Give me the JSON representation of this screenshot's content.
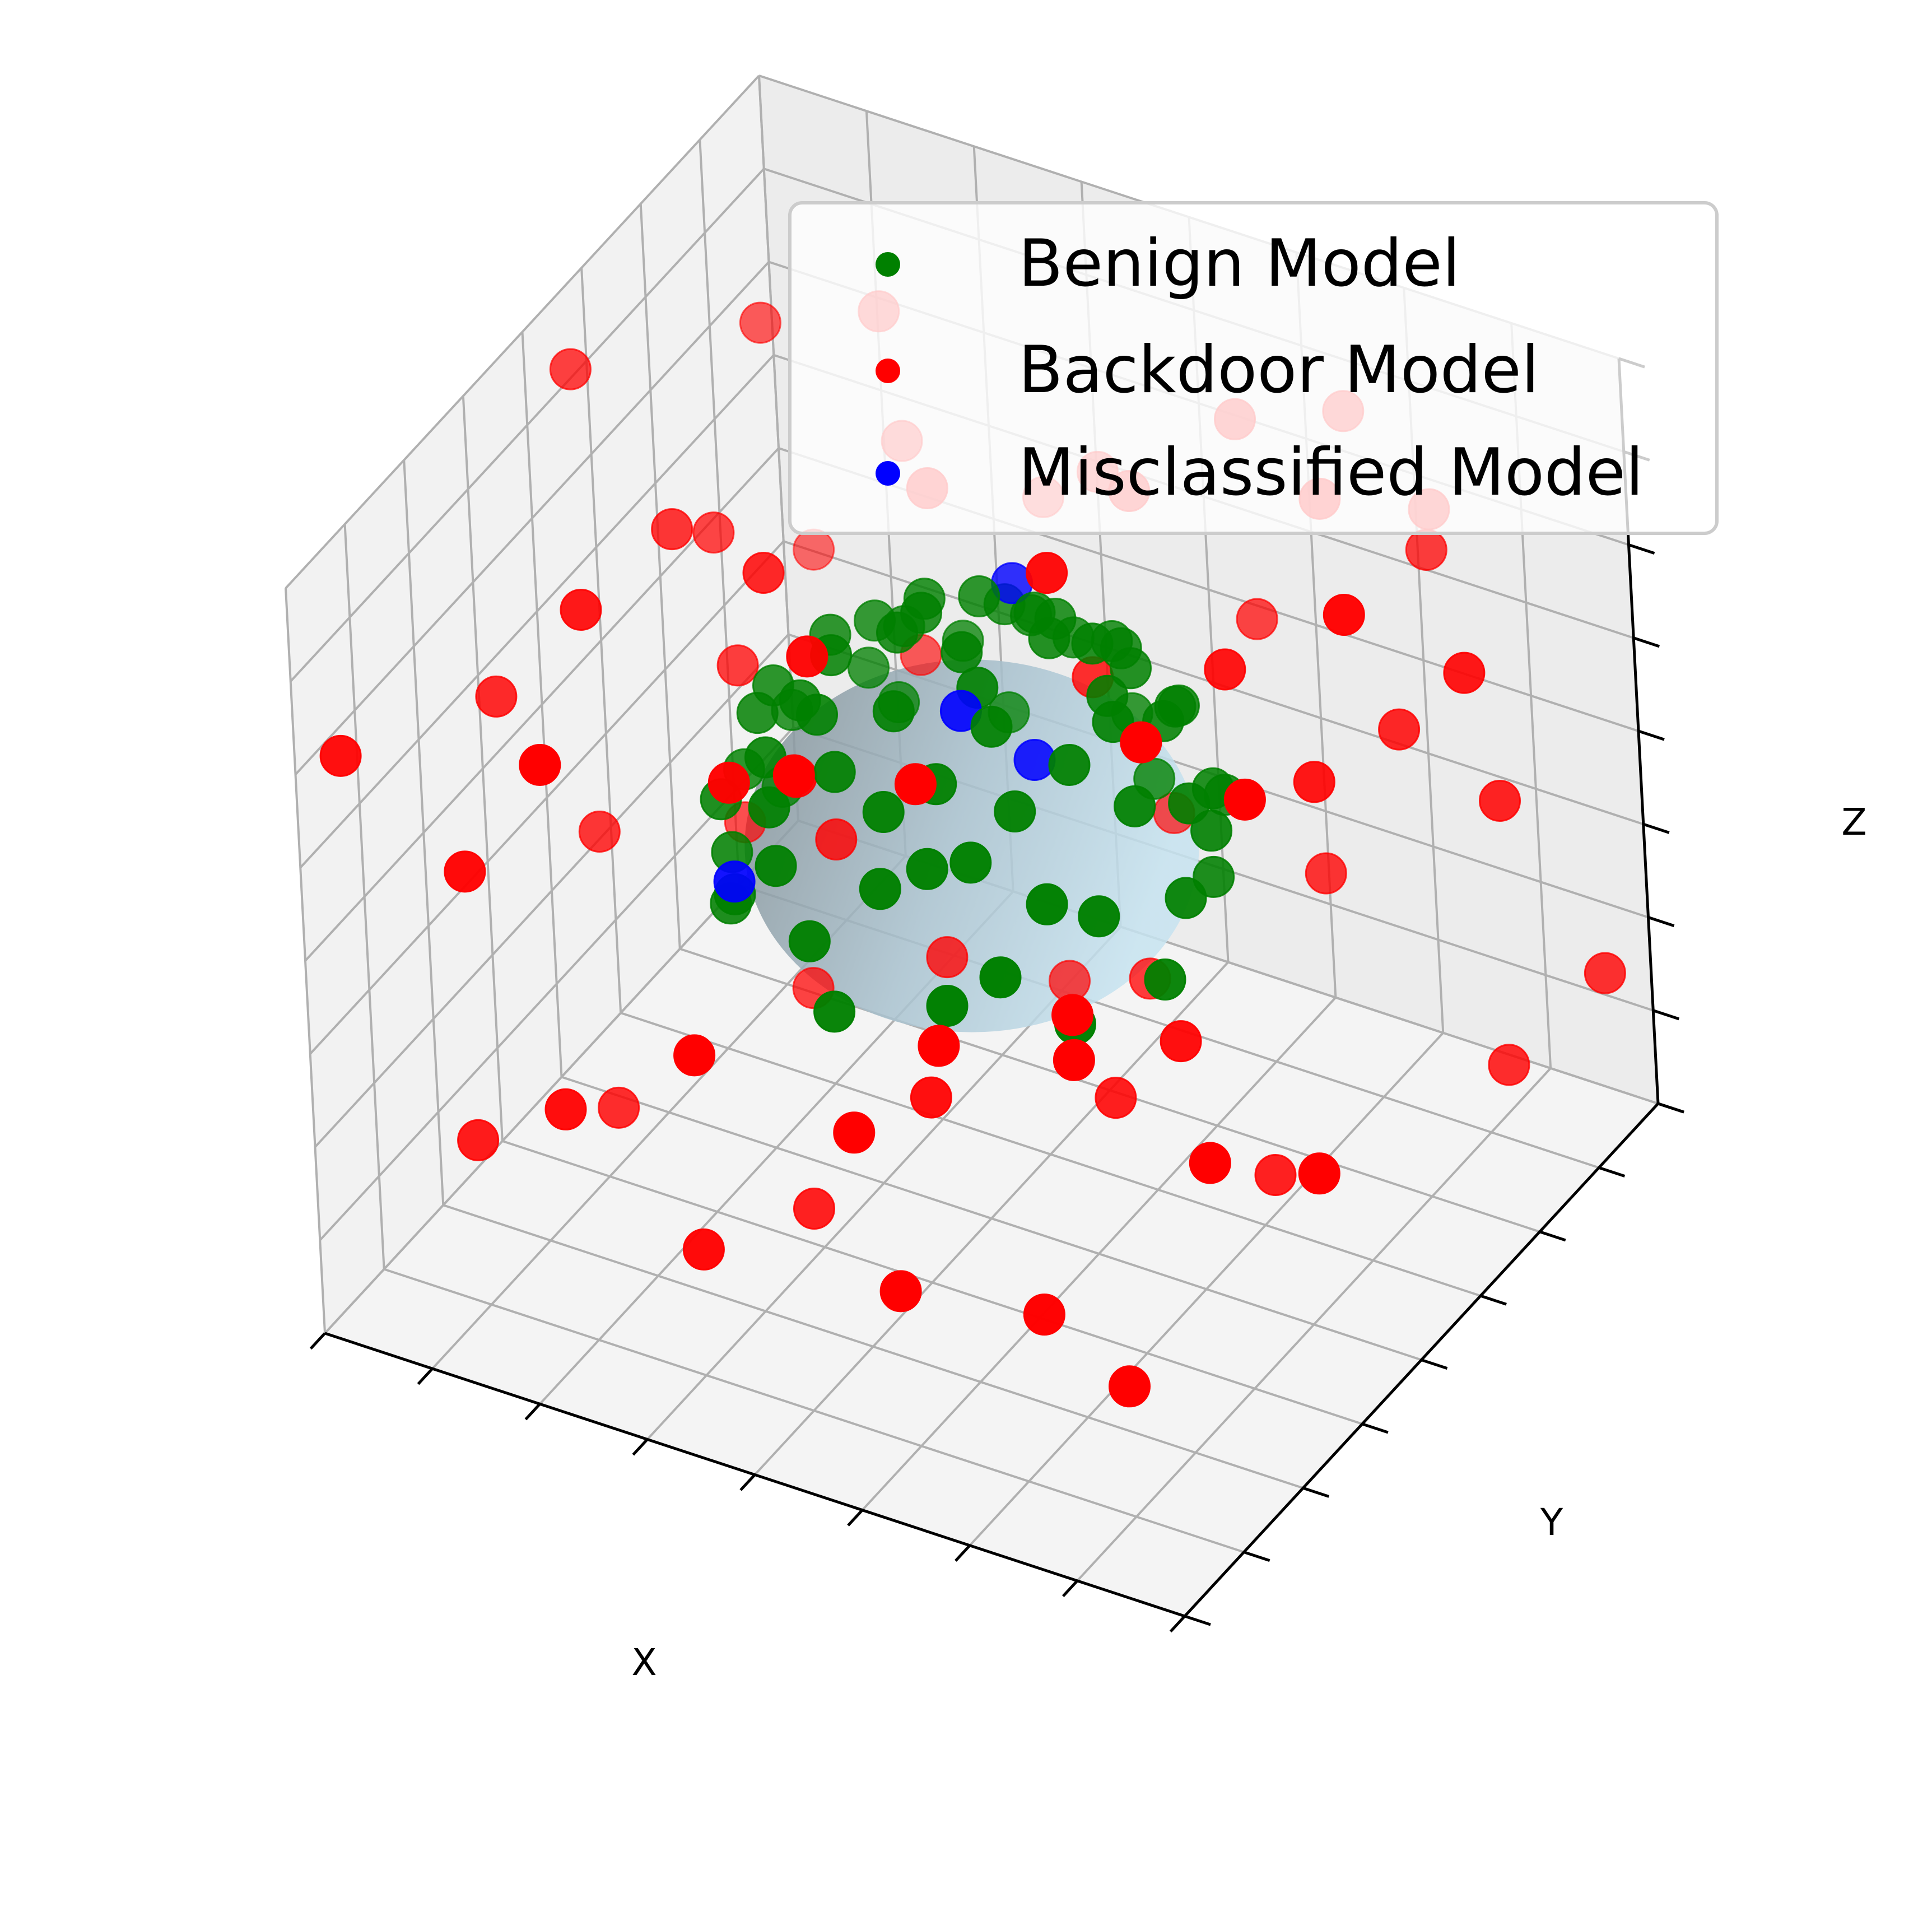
{
  "chart_data": {
    "type": "scatter",
    "projection": "3d",
    "title": "",
    "xlabel": "X",
    "ylabel": "Y",
    "zlabel": "Z",
    "tick_labels_shown": false,
    "grid": true,
    "legend": {
      "placement": "upper-right",
      "entries": [
        "Benign Model",
        "Backdoor Model",
        "Misclassified Model"
      ]
    },
    "xlim": [
      -1,
      1
    ],
    "ylim": [
      -1,
      1
    ],
    "zlim": [
      -1,
      1
    ],
    "surface": {
      "shape": "sphere",
      "center": [
        0,
        0,
        0
      ],
      "radius": 0.52,
      "color": "#a9cfe0"
    },
    "series": [
      {
        "name": "Benign Model",
        "color": "#008000",
        "points": [
          [
            0.12,
            0.15,
            0.5
          ],
          [
            -0.18,
            0.05,
            0.47
          ],
          [
            0.3,
            -0.1,
            0.4
          ],
          [
            -0.3,
            -0.15,
            0.38
          ],
          [
            0.1,
            -0.3,
            0.41
          ],
          [
            -0.1,
            0.35,
            0.37
          ],
          [
            0.35,
            0.2,
            0.33
          ],
          [
            -0.35,
            0.25,
            0.3
          ],
          [
            0.22,
            -0.38,
            0.3
          ],
          [
            -0.25,
            -0.38,
            0.27
          ],
          [
            0.42,
            -0.05,
            0.3
          ],
          [
            -0.45,
            0.0,
            0.26
          ],
          [
            0.0,
            0.45,
            0.25
          ],
          [
            0.05,
            -0.46,
            0.22
          ],
          [
            0.25,
            0.42,
            0.18
          ],
          [
            -0.25,
            0.43,
            0.16
          ],
          [
            0.44,
            -0.25,
            0.15
          ],
          [
            -0.44,
            -0.25,
            0.13
          ],
          [
            0.48,
            0.15,
            0.12
          ],
          [
            -0.48,
            0.12,
            0.1
          ],
          [
            0.0,
            0.0,
            0.52
          ],
          [
            0.15,
            -0.15,
            0.48
          ],
          [
            -0.05,
            -0.2,
            0.48
          ],
          [
            0.2,
            0.3,
            0.4
          ],
          [
            -0.2,
            0.2,
            0.45
          ],
          [
            0.32,
            0.05,
            0.42
          ],
          [
            -0.12,
            -0.33,
            0.38
          ],
          [
            0.4,
            0.3,
            0.1
          ],
          [
            -0.4,
            0.3,
            0.12
          ],
          [
            0.1,
            0.5,
            0.05
          ],
          [
            -0.1,
            -0.5,
            0.05
          ],
          [
            0.5,
            0.0,
            0.05
          ],
          [
            -0.5,
            -0.05,
            0.05
          ],
          [
            0.3,
            -0.42,
            0.05
          ],
          [
            -0.33,
            -0.4,
            0.02
          ],
          [
            0.18,
            0.22,
            0.46
          ],
          [
            -0.28,
            -0.05,
            0.44
          ],
          [
            0.06,
            0.28,
            0.44
          ],
          [
            0.26,
            -0.26,
            0.37
          ],
          [
            -0.38,
            0.12,
            0.34
          ],
          [
            0.38,
            0.38,
            0.02
          ],
          [
            -0.38,
            0.38,
            -0.02
          ],
          [
            0.45,
            0.2,
            -0.05
          ],
          [
            -0.45,
            -0.2,
            -0.05
          ],
          [
            0.2,
            -0.47,
            -0.03
          ],
          [
            -0.18,
            0.48,
            -0.04
          ],
          [
            0.0,
            0.3,
            0.42
          ],
          [
            0.28,
            0.1,
            0.44
          ],
          [
            -0.15,
            0.1,
            0.5
          ],
          [
            0.08,
            -0.08,
            0.51
          ],
          [
            -0.08,
            0.42,
            0.3
          ],
          [
            0.36,
            -0.32,
            0.2
          ],
          [
            -0.3,
            -0.3,
            0.33
          ],
          [
            0.12,
            0.4,
            0.32
          ],
          [
            -0.42,
            -0.12,
            0.28
          ],
          [
            0.46,
            0.1,
            0.22
          ],
          [
            -0.2,
            -0.45,
            0.18
          ],
          [
            0.3,
            0.35,
            0.25
          ],
          [
            -0.34,
            0.35,
            0.22
          ],
          [
            0.02,
            -0.38,
            0.36
          ],
          [
            0.5,
            -0.1,
            -0.1
          ],
          [
            -0.5,
            0.1,
            -0.1
          ],
          [
            0.15,
            0.49,
            -0.1
          ],
          [
            -0.05,
            -0.5,
            -0.12
          ],
          [
            0.4,
            -0.3,
            -0.12
          ],
          [
            -0.4,
            -0.3,
            -0.1
          ],
          [
            0.25,
            0.25,
            0.4
          ],
          [
            -0.22,
            -0.22,
            0.42
          ],
          [
            0.14,
            -0.42,
            0.28
          ],
          [
            -0.1,
            0.25,
            0.46
          ]
        ]
      },
      {
        "name": "Backdoor Model",
        "color": "#ff0000",
        "points": [
          [
            -0.2,
            -0.62,
            0.52
          ],
          [
            0.55,
            0.12,
            0.6
          ],
          [
            -0.75,
            0.3,
            0.35
          ],
          [
            0.7,
            0.55,
            0.2
          ],
          [
            -0.1,
            0.75,
            0.45
          ],
          [
            0.25,
            -0.8,
            -0.55
          ],
          [
            -0.85,
            -0.6,
            -0.7
          ],
          [
            0.9,
            -0.2,
            -0.4
          ],
          [
            -0.6,
            0.85,
            -0.3
          ],
          [
            0.4,
            0.9,
            0.7
          ],
          [
            -0.95,
            0.1,
            0.85
          ],
          [
            0.15,
            -0.95,
            0.9
          ],
          [
            0.8,
            0.75,
            -0.8
          ],
          [
            -0.3,
            -0.2,
            -0.95
          ],
          [
            0.6,
            -0.65,
            0.1
          ],
          [
            -0.7,
            -0.85,
            0.25
          ],
          [
            0.05,
            0.6,
            -0.75
          ],
          [
            -0.45,
            0.5,
            0.92
          ],
          [
            0.95,
            0.4,
            0.55
          ],
          [
            -0.85,
            0.7,
            0.6
          ],
          [
            0.35,
            -0.4,
            -0.85
          ],
          [
            -0.15,
            -0.9,
            0.0
          ],
          [
            0.75,
            -0.9,
            0.45
          ],
          [
            -0.9,
            -0.35,
            0.3
          ],
          [
            0.5,
            0.3,
            -0.9
          ],
          [
            -0.6,
            -0.5,
            0.75
          ],
          [
            0.2,
            0.85,
            0.1
          ],
          [
            0.88,
            0.05,
            0.92
          ],
          [
            -0.35,
            0.95,
            0.15
          ],
          [
            0.65,
            -0.4,
            0.8
          ],
          [
            -0.8,
            0.45,
            -0.55
          ],
          [
            0.1,
            -0.7,
            -0.25
          ],
          [
            -0.55,
            -0.75,
            -0.4
          ],
          [
            0.45,
            0.65,
            -0.35
          ],
          [
            -0.25,
            0.3,
            -0.6
          ],
          [
            0.85,
            -0.55,
            -0.15
          ],
          [
            -0.95,
            -0.9,
            0.5
          ],
          [
            0.3,
            -0.15,
            0.95
          ],
          [
            -0.65,
            0.2,
            0.1
          ],
          [
            0.55,
            0.95,
            0.35
          ],
          [
            -0.1,
            -0.45,
            0.78
          ],
          [
            0.7,
            0.2,
            0.3
          ],
          [
            -0.4,
            -0.1,
            0.65
          ],
          [
            0.15,
            0.45,
            0.7
          ],
          [
            -0.75,
            -0.2,
            -0.85
          ],
          [
            0.95,
            0.9,
            -0.6
          ],
          [
            -0.2,
            0.7,
            -0.92
          ],
          [
            0.4,
            -0.85,
            0.2
          ],
          [
            -0.5,
            0.65,
            0.45
          ],
          [
            0.6,
            0.45,
            0.85
          ],
          [
            -0.9,
            0.95,
            -0.2
          ],
          [
            0.25,
            0.1,
            -0.65
          ],
          [
            -0.3,
            -0.65,
            -0.75
          ],
          [
            0.8,
            -0.25,
            0.6
          ],
          [
            -0.15,
            0.15,
            0.8
          ],
          [
            0.05,
            -0.3,
            -0.45
          ],
          [
            -0.7,
            0.05,
            0.55
          ],
          [
            0.5,
            -0.05,
            -0.3
          ],
          [
            -0.45,
            -0.95,
            0.7
          ],
          [
            0.9,
            0.6,
            0.05
          ],
          [
            0.2,
            -0.55,
            0.62
          ],
          [
            -0.05,
            0.9,
            -0.55
          ],
          [
            0.65,
            0.8,
            0.6
          ],
          [
            -0.85,
            -0.05,
            -0.25
          ],
          [
            0.35,
            0.55,
            0.9
          ],
          [
            -0.6,
            0.35,
            -0.85
          ],
          [
            0.75,
            -0.75,
            -0.65
          ],
          [
            -0.2,
            -0.35,
            0.35
          ],
          [
            0.1,
            0.35,
            0.25
          ],
          [
            -0.35,
            0.05,
            -0.15
          ]
        ]
      },
      {
        "name": "Misclassified Model",
        "color": "#0000ff",
        "points": [
          [
            0.05,
            -0.1,
            0.45
          ],
          [
            -0.3,
            -0.45,
            0.1
          ],
          [
            0.1,
            0.1,
            0.2
          ],
          [
            -0.05,
            0.3,
            0.48
          ]
        ]
      }
    ]
  }
}
